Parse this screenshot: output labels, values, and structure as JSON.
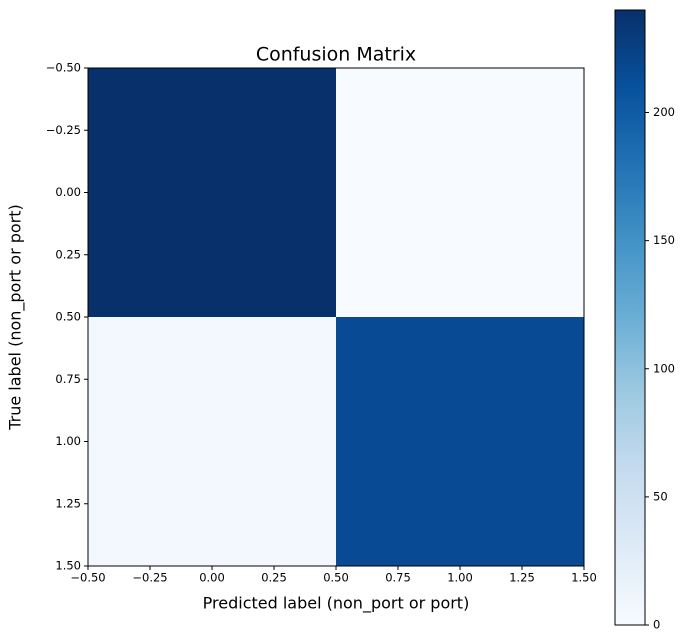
{
  "chart_data": {
    "type": "heatmap",
    "title": "Confusion Matrix",
    "x_label": "Predicted label (non_port or port)",
    "y_label": "True label (non_port or port)",
    "x": [
      0,
      1
    ],
    "y": [
      0,
      1
    ],
    "z": [
      [
        240,
        0
      ],
      [
        5,
        215
      ]
    ],
    "colormap": "Blues",
    "xlim": [
      -0.5,
      1.5
    ],
    "ylim": [
      1.5,
      -0.5
    ],
    "xticks": [
      {
        "value": -0.5,
        "label": "−0.50"
      },
      {
        "value": -0.25,
        "label": "−0.25"
      },
      {
        "value": 0,
        "label": "0.00"
      },
      {
        "value": 0.25,
        "label": "0.25"
      },
      {
        "value": 0.5,
        "label": "0.50"
      },
      {
        "value": 0.75,
        "label": "0.75"
      },
      {
        "value": 1,
        "label": "1.00"
      },
      {
        "value": 1.25,
        "label": "1.25"
      },
      {
        "value": 1.5,
        "label": "1.50"
      }
    ],
    "yticks": [
      {
        "value": -0.5,
        "label": "−0.50"
      },
      {
        "value": -0.25,
        "label": "−0.25"
      },
      {
        "value": 0,
        "label": "0.00"
      },
      {
        "value": 0.25,
        "label": "0.25"
      },
      {
        "value": 0.5,
        "label": "0.50"
      },
      {
        "value": 0.75,
        "label": "0.75"
      },
      {
        "value": 1,
        "label": "1.00"
      },
      {
        "value": 1.25,
        "label": "1.25"
      },
      {
        "value": 1.5,
        "label": "1.50"
      }
    ],
    "zlim": [
      0,
      240
    ],
    "zticks": [
      0,
      50,
      100,
      150,
      200
    ]
  }
}
